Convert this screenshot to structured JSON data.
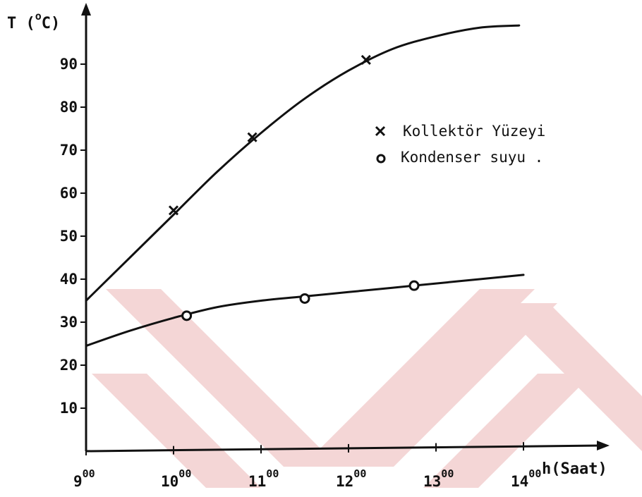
{
  "chart_data": {
    "type": "line",
    "ylabel": "T (°C)",
    "ylabel_parts": [
      "T (",
      "o",
      "C)"
    ],
    "xlabel": "h(Saat)",
    "xlim": [
      9,
      14
    ],
    "ylim": [
      0,
      100
    ],
    "grid": false,
    "legend_position": "right",
    "x_ticks": [
      {
        "value": 9,
        "base": "9",
        "sup": "00"
      },
      {
        "value": 10,
        "base": "10",
        "sup": "00"
      },
      {
        "value": 11,
        "base": "11",
        "sup": "00"
      },
      {
        "value": 12,
        "base": "12",
        "sup": "00"
      },
      {
        "value": 13,
        "base": "13",
        "sup": "00"
      },
      {
        "value": 14,
        "base": "14",
        "sup": "00"
      }
    ],
    "y_ticks": [
      "10",
      "20",
      "30",
      "40",
      "50",
      "60",
      "70",
      "80",
      "90"
    ],
    "series": [
      {
        "name": "Kollektör Yüzeyi",
        "marker": "x",
        "curve": [
          [
            9.0,
            35
          ],
          [
            9.5,
            45
          ],
          [
            10.0,
            55
          ],
          [
            10.5,
            65
          ],
          [
            11.0,
            74
          ],
          [
            11.5,
            82
          ],
          [
            12.0,
            88.5
          ],
          [
            12.5,
            93.5
          ],
          [
            13.0,
            96.5
          ],
          [
            13.5,
            98.5
          ],
          [
            13.95,
            99
          ]
        ],
        "points": [
          [
            10.0,
            56
          ],
          [
            10.9,
            73
          ],
          [
            12.2,
            91
          ]
        ]
      },
      {
        "name": "Kondenser suyu .",
        "marker": "o",
        "curve": [
          [
            9.0,
            24.5
          ],
          [
            9.5,
            28
          ],
          [
            10.0,
            31
          ],
          [
            10.5,
            33.5
          ],
          [
            11.0,
            35
          ],
          [
            11.5,
            36
          ],
          [
            12.0,
            37
          ],
          [
            12.5,
            38
          ],
          [
            13.0,
            39
          ],
          [
            13.5,
            40
          ],
          [
            14.0,
            41
          ]
        ],
        "points": [
          [
            10.15,
            31.5
          ],
          [
            11.5,
            35.5
          ],
          [
            12.75,
            38.5
          ]
        ]
      }
    ]
  },
  "colors": {
    "ink": "#111111",
    "watermark": "#f4d6d6"
  }
}
